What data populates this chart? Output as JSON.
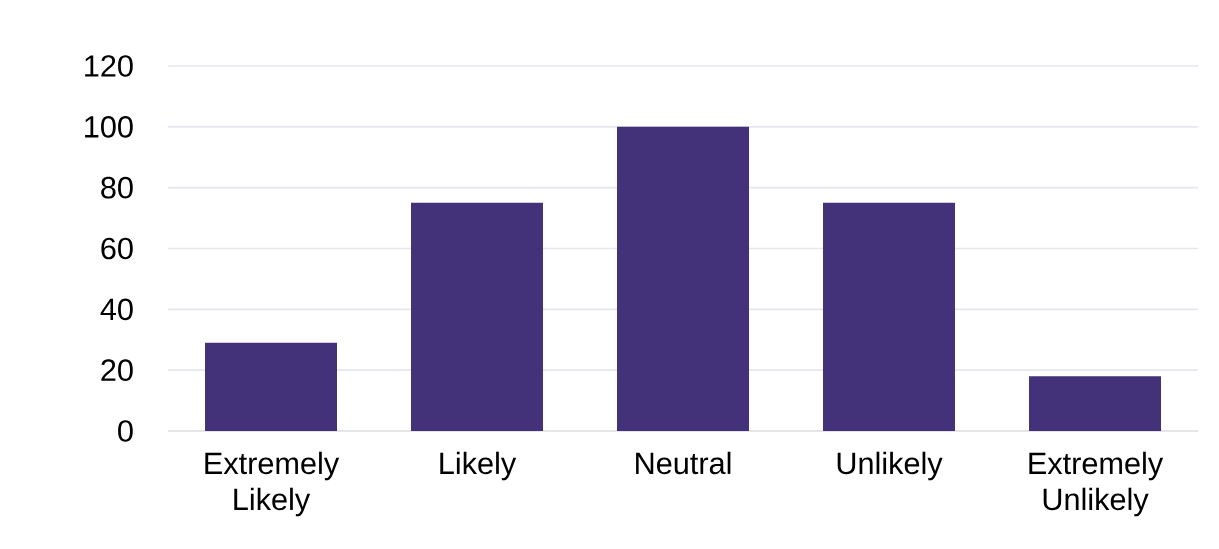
{
  "chart_data": {
    "type": "bar",
    "categories": [
      "Extremely Likely",
      "Likely",
      "Neutral",
      "Unlikely",
      "Extremely Unlikely"
    ],
    "values": [
      29,
      75,
      100,
      75,
      18
    ],
    "color": "#433279",
    "ylim": [
      0,
      120
    ],
    "yticks": [
      0,
      20,
      40,
      60,
      80,
      100,
      120
    ],
    "grid": "y"
  }
}
